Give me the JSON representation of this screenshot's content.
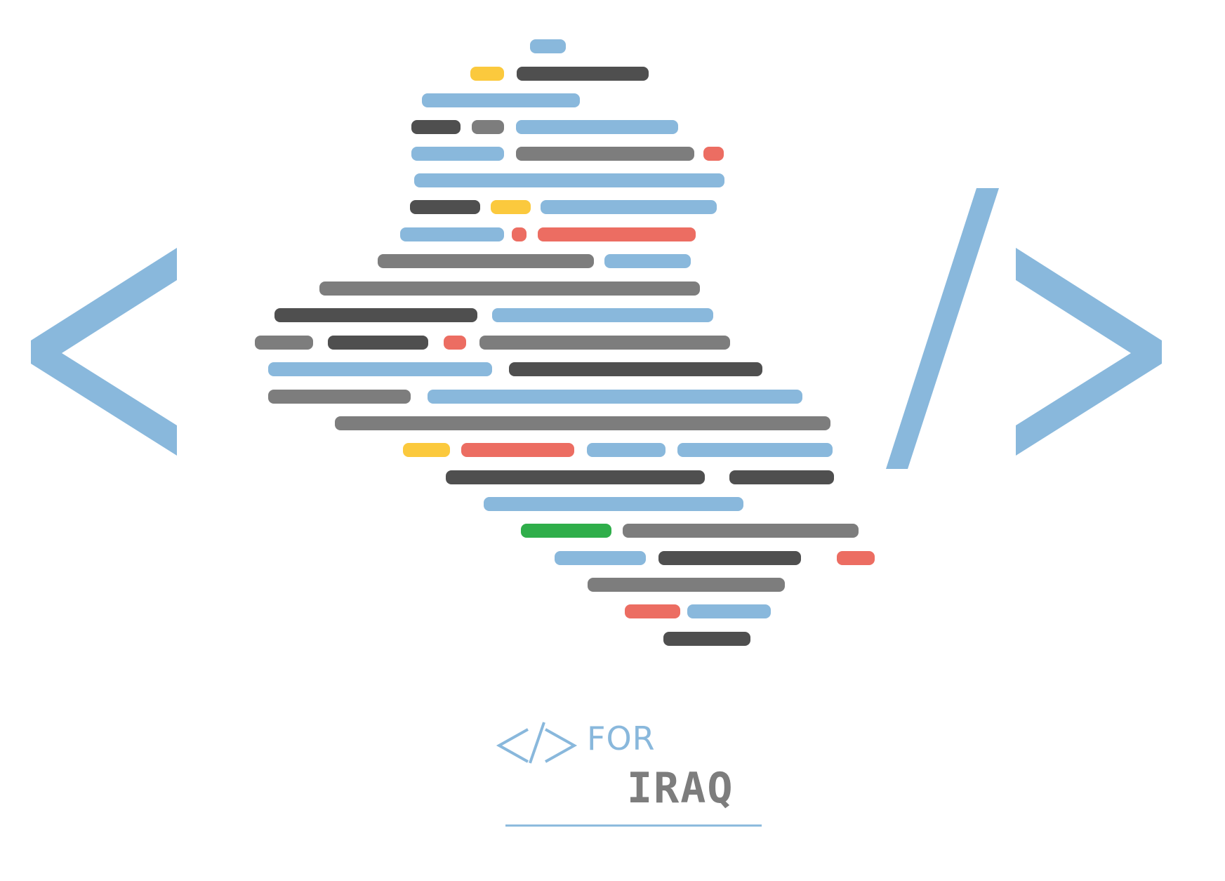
{
  "logo": {
    "name": "code-for-iraq-logo",
    "wordmark_line1": "FOR",
    "wordmark_line2": "IRAQ"
  },
  "colors": {
    "light_blue": "#89b8dc",
    "dark_gray": "#4f4f4f",
    "mid_gray": "#7d7d7d",
    "yellow": "#fbc93d",
    "red": "#ec6d62",
    "green": "#2fae4a",
    "background": "#ffffff"
  },
  "icons": [
    "left-angle-bracket-icon",
    "forward-slash-icon",
    "right-angle-bracket-icon",
    "iraq-map-code-lines-icon"
  ]
}
